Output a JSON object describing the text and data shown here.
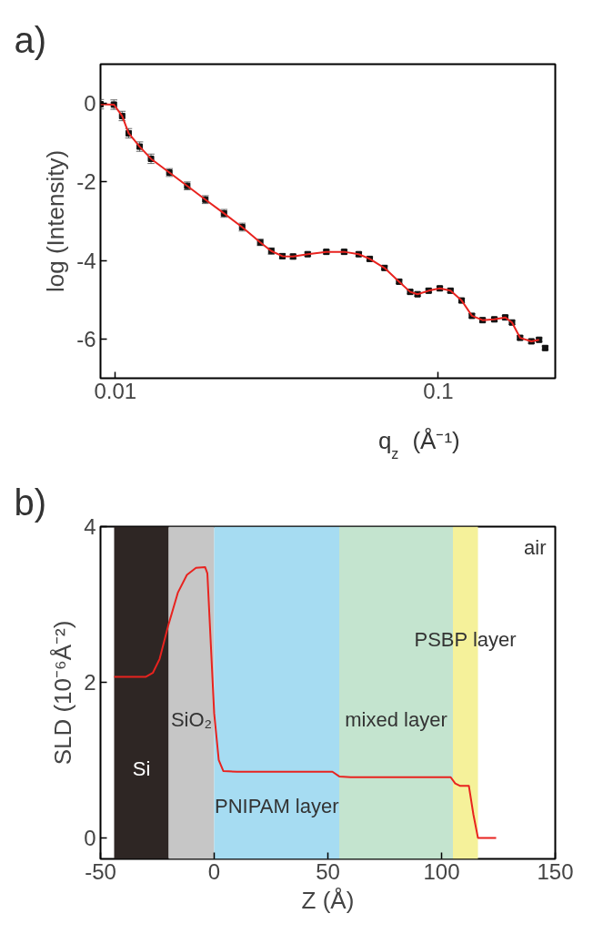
{
  "chart_data": [
    {
      "type": "scatter",
      "title": "a)",
      "xlabel": "q$_{z}$ (Å⁻¹)",
      "ylabel": "log (Intensity)",
      "log": "x",
      "grid": false,
      "xlim": [
        0.009,
        0.23
      ],
      "ylim": [
        -7,
        1
      ],
      "xticks": [
        0.01,
        0.1
      ],
      "yticks": [
        -6,
        -4,
        -2,
        0
      ],
      "series": [
        {
          "type": "scatter",
          "marker": "square",
          "color": "#111111",
          "x": [
            0.009,
            0.0099,
            0.0105,
            0.011,
            0.0119,
            0.0129,
            0.0147,
            0.0167,
            0.019,
            0.0217,
            0.0247,
            0.0281,
            0.0304,
            0.0329,
            0.0355,
            0.0394,
            0.045,
            0.0511,
            0.0567,
            0.0613,
            0.0681,
            0.0756,
            0.0818,
            0.0862,
            0.0933,
            0.101,
            0.109,
            0.118,
            0.127,
            0.137,
            0.149,
            0.161,
            0.169,
            0.179,
            0.194,
            0.205,
            0.214
          ],
          "values": [
            -0.02,
            -0.03,
            -0.32,
            -0.76,
            -1.1,
            -1.41,
            -1.76,
            -2.1,
            -2.45,
            -2.8,
            -3.15,
            -3.54,
            -3.76,
            -3.89,
            -3.9,
            -3.84,
            -3.78,
            -3.78,
            -3.84,
            -3.96,
            -4.19,
            -4.54,
            -4.8,
            -4.86,
            -4.77,
            -4.71,
            -4.77,
            -5.02,
            -5.41,
            -5.52,
            -5.5,
            -5.45,
            -5.58,
            -5.97,
            -6.06,
            -6.02,
            -6.23
          ],
          "errors": [
            0.12,
            0.12,
            0.12,
            0.12,
            0.12,
            0.12,
            0.1,
            0.1,
            0.1,
            0.1,
            0.1,
            0.08,
            0.08,
            0.06,
            0.06,
            0.05,
            0.05,
            0.05,
            0.05,
            0.05,
            0.05,
            0.05,
            0.05,
            0.05,
            0.05,
            0.05,
            0.05,
            0.05,
            0.05,
            0.05,
            0.05,
            0.05,
            0.05,
            0.05,
            0.05,
            0.05,
            0.05
          ]
        },
        {
          "type": "line",
          "color": "#e8231f",
          "x": [
            0.009,
            0.0099,
            0.0105,
            0.011,
            0.0119,
            0.0129,
            0.0147,
            0.0167,
            0.019,
            0.0217,
            0.0247,
            0.0281,
            0.0304,
            0.0329,
            0.0355,
            0.0394,
            0.045,
            0.0511,
            0.0567,
            0.0613,
            0.0681,
            0.0756,
            0.0818,
            0.0862,
            0.0933,
            0.101,
            0.109,
            0.118,
            0.127,
            0.137,
            0.149,
            0.161,
            0.169,
            0.179,
            0.194,
            0.205
          ],
          "values": [
            -0.02,
            -0.03,
            -0.32,
            -0.76,
            -1.1,
            -1.41,
            -1.76,
            -2.1,
            -2.45,
            -2.8,
            -3.15,
            -3.54,
            -3.76,
            -3.89,
            -3.9,
            -3.84,
            -3.78,
            -3.78,
            -3.84,
            -3.96,
            -4.19,
            -4.54,
            -4.8,
            -4.86,
            -4.77,
            -4.71,
            -4.77,
            -5.02,
            -5.41,
            -5.52,
            -5.5,
            -5.45,
            -5.58,
            -5.97,
            -6.06,
            -6.02
          ]
        }
      ]
    },
    {
      "type": "line",
      "title": "b)",
      "xlabel": "Z (Å)",
      "ylabel": "SLD (10⁻⁶Å⁻²)",
      "grid": false,
      "xlim": [
        -50,
        150
      ],
      "ylim": [
        -0.27,
        4
      ],
      "xticks": [
        -50,
        0,
        50,
        100,
        150
      ],
      "yticks": [
        0,
        2,
        4
      ],
      "series": [
        {
          "color": "#e8231f",
          "x": [
            -44,
            -30,
            -27,
            -24,
            -20,
            -16,
            -12,
            -8,
            -4,
            -3,
            -1.5,
            0,
            2,
            4,
            10,
            52,
            55,
            60,
            104,
            106,
            108,
            112,
            114,
            116,
            124
          ],
          "values": [
            2.07,
            2.07,
            2.12,
            2.3,
            2.75,
            3.15,
            3.38,
            3.47,
            3.48,
            3.4,
            2.5,
            1.6,
            1.0,
            0.86,
            0.85,
            0.85,
            0.79,
            0.78,
            0.78,
            0.7,
            0.67,
            0.67,
            0.3,
            0.0,
            0.0
          ]
        }
      ],
      "bands": [
        {
          "axis": "x",
          "from": -44,
          "to": -20,
          "color": "#2e2624",
          "label": "Si"
        },
        {
          "axis": "x",
          "from": -20,
          "to": 0,
          "color": "#c6c6c6",
          "label": "SiO₂"
        },
        {
          "axis": "x",
          "from": 0,
          "to": 55,
          "color": "#a6dcf2",
          "label": "PNIPAM layer"
        },
        {
          "axis": "x",
          "from": 55,
          "to": 105,
          "color": "#c4e4cf",
          "label": "mixed layer"
        },
        {
          "axis": "x",
          "from": 105,
          "to": 116,
          "color": "#f5f19a",
          "label": "PSBP layer"
        }
      ],
      "annotations": [
        "air"
      ]
    }
  ]
}
